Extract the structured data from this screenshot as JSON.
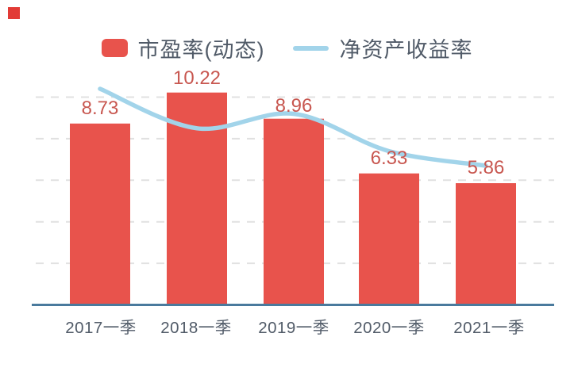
{
  "decorations": {
    "corner_square": {
      "visible": true,
      "color": "#e23b36"
    }
  },
  "colors": {
    "bar": "#e8534c",
    "bar_value_label": "#c85750",
    "line": "#a2d4ea",
    "axis_baseline": "#4a7a9d",
    "gridline": "#e1e1e1",
    "text": "#515b68",
    "background": "#ffffff"
  },
  "legend": {
    "items": [
      {
        "label": "市盈率(动态)",
        "swatch": "bar-swatch"
      },
      {
        "label": "净资产收益率",
        "swatch": "line-swatch"
      }
    ]
  },
  "chart_data": {
    "type": "combo",
    "title": "",
    "categories": [
      "2017一季",
      "2018一季",
      "2019一季",
      "2020一季",
      "2021一季"
    ],
    "series": [
      {
        "name": "市盈率(动态)",
        "type": "bar",
        "values": [
          8.73,
          10.22,
          8.96,
          6.33,
          5.86
        ],
        "data_labels": [
          "8.73",
          "10.22",
          "8.96",
          "6.33",
          "5.86"
        ],
        "data_labels_visible": true
      },
      {
        "name": "净资产收益率",
        "type": "line",
        "values_estimated": [
          10.4,
          8.5,
          9.2,
          7.4,
          6.7
        ],
        "data_labels_visible": false,
        "smooth": true
      }
    ],
    "ylim": [
      0,
      10
    ],
    "grid_step": 2,
    "gridlines": "dashed-horizontal",
    "y_axis_labels_shown": false,
    "x_axis_labels_shown": true,
    "baseline_shown": true,
    "legend_position": "top-center"
  }
}
